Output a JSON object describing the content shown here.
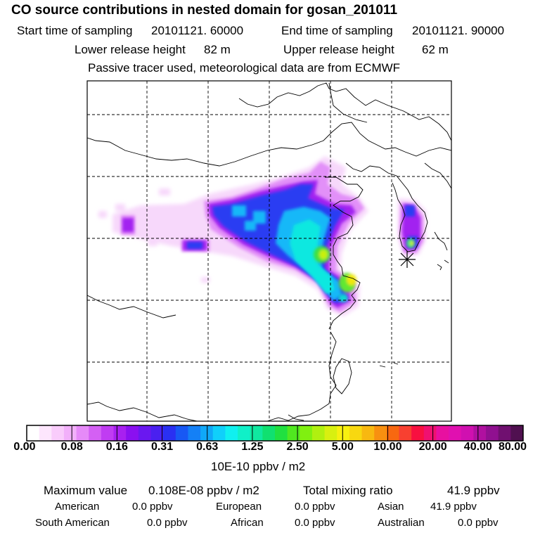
{
  "header": {
    "title": "CO  source contributions in nested domain for gosan_201011",
    "start_label": "Start time of sampling",
    "start_value": "20101121. 60000",
    "end_label": "End time of sampling",
    "end_value": "20101121. 90000",
    "lower_label": "Lower release height",
    "lower_value": "82 m",
    "upper_label": "Upper release height",
    "upper_value": "62 m",
    "note": "Passive tracer used, meteorological data are from ECMWF"
  },
  "map": {
    "region": "East Asia nested domain",
    "receptor_marker": "asterisk-icon",
    "receptor_name": "gosan"
  },
  "colorbar": {
    "ticks": [
      "0.00",
      "0.08",
      "0.16",
      "0.31",
      "0.63",
      "1.25",
      "2.50",
      "5.00",
      "10.00",
      "20.00",
      "40.00",
      "80.00"
    ],
    "units": "10E-10 ppbv / m2",
    "colors": [
      "#ffffff",
      "#fde6fd",
      "#f9ccfb",
      "#f2b0fa",
      "#e68af8",
      "#d460f4",
      "#c03cf2",
      "#a820f0",
      "#8a10f0",
      "#6a18f0",
      "#4a20f0",
      "#2a30f2",
      "#1858f4",
      "#1480f6",
      "#10a8f8",
      "#10d0fa",
      "#10f0f0",
      "#10f0c8",
      "#10e8a0",
      "#10e070",
      "#20e040",
      "#50e820",
      "#80f010",
      "#b0f010",
      "#d8f010",
      "#f8f010",
      "#f8d810",
      "#f8b810",
      "#f89010",
      "#f86810",
      "#f84030",
      "#f81040",
      "#f01070",
      "#e810a0",
      "#e010b0",
      "#d010b0",
      "#b010a0",
      "#901090",
      "#701070",
      "#501050"
    ]
  },
  "stats": {
    "max_label": "Maximum value",
    "max_value": "0.108E-08 ppbv / m2",
    "total_label": "Total mixing ratio",
    "total_value": "41.9 ppbv",
    "regions": [
      {
        "name": "American",
        "value": "0.0 ppbv"
      },
      {
        "name": "European",
        "value": "0.0 ppbv"
      },
      {
        "name": "Asian",
        "value": "41.9 ppbv"
      },
      {
        "name": "South American",
        "value": "0.0 ppbv"
      },
      {
        "name": "African",
        "value": "0.0 ppbv"
      },
      {
        "name": "Australian",
        "value": "0.0 ppbv"
      }
    ]
  }
}
